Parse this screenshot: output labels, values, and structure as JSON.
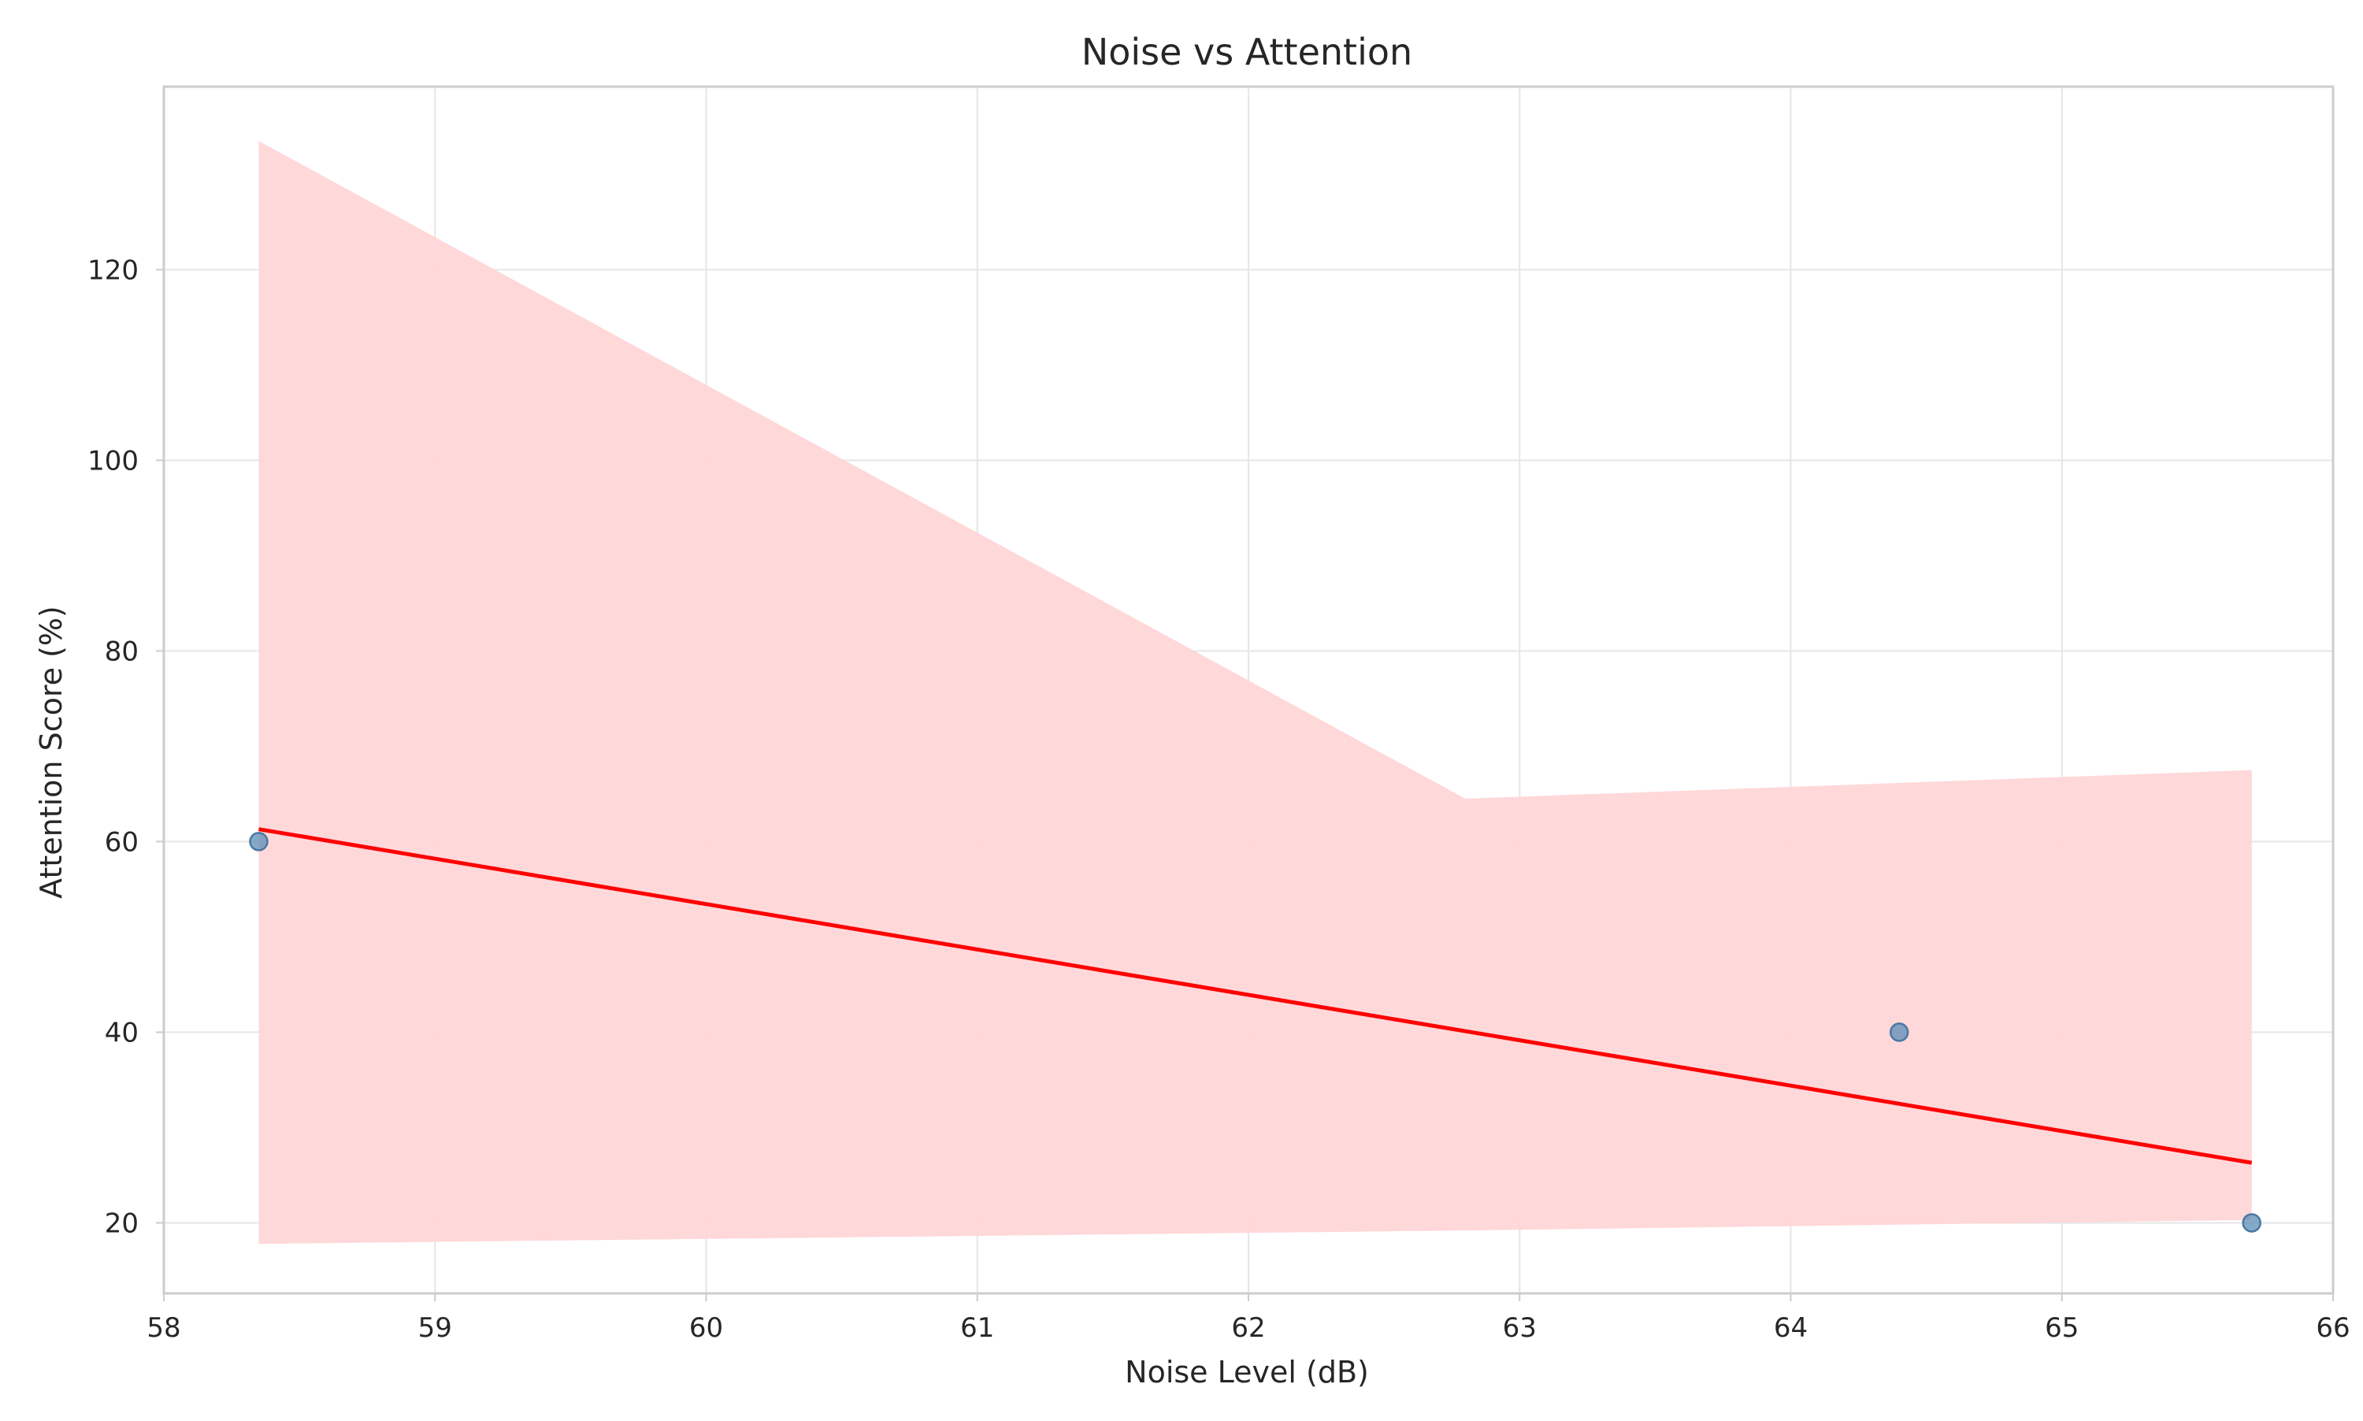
{
  "chart_data": {
    "type": "scatter",
    "title": "Noise vs Attention",
    "xlabel": "Noise Level (dB)",
    "ylabel": "Attention Score (%)",
    "xlim": [
      58,
      66
    ],
    "ylim": [
      12.6,
      139.2
    ],
    "xticks": [
      58,
      59,
      60,
      61,
      62,
      63,
      64,
      65,
      66
    ],
    "yticks": [
      20,
      40,
      60,
      80,
      100,
      120
    ],
    "grid": true,
    "points": [
      {
        "x": 58.35,
        "y": 60
      },
      {
        "x": 64.4,
        "y": 40
      },
      {
        "x": 65.7,
        "y": 20
      }
    ],
    "regression": {
      "x": [
        58.35,
        65.7
      ],
      "y": [
        61.3,
        26.3
      ]
    },
    "confidence_band": {
      "x": [
        58.35,
        62.8,
        65.7
      ],
      "upper": [
        133.5,
        64.5,
        67.5
      ],
      "lower": [
        17.8,
        19.2,
        20.3
      ]
    },
    "colors": {
      "points": "#5b8db8",
      "points_edge": "#4a78a3",
      "regression_line": "#ff0000",
      "confidence_band": "#ffd6d8",
      "grid": "#e6e6e6",
      "axes": "#cccccc"
    }
  }
}
